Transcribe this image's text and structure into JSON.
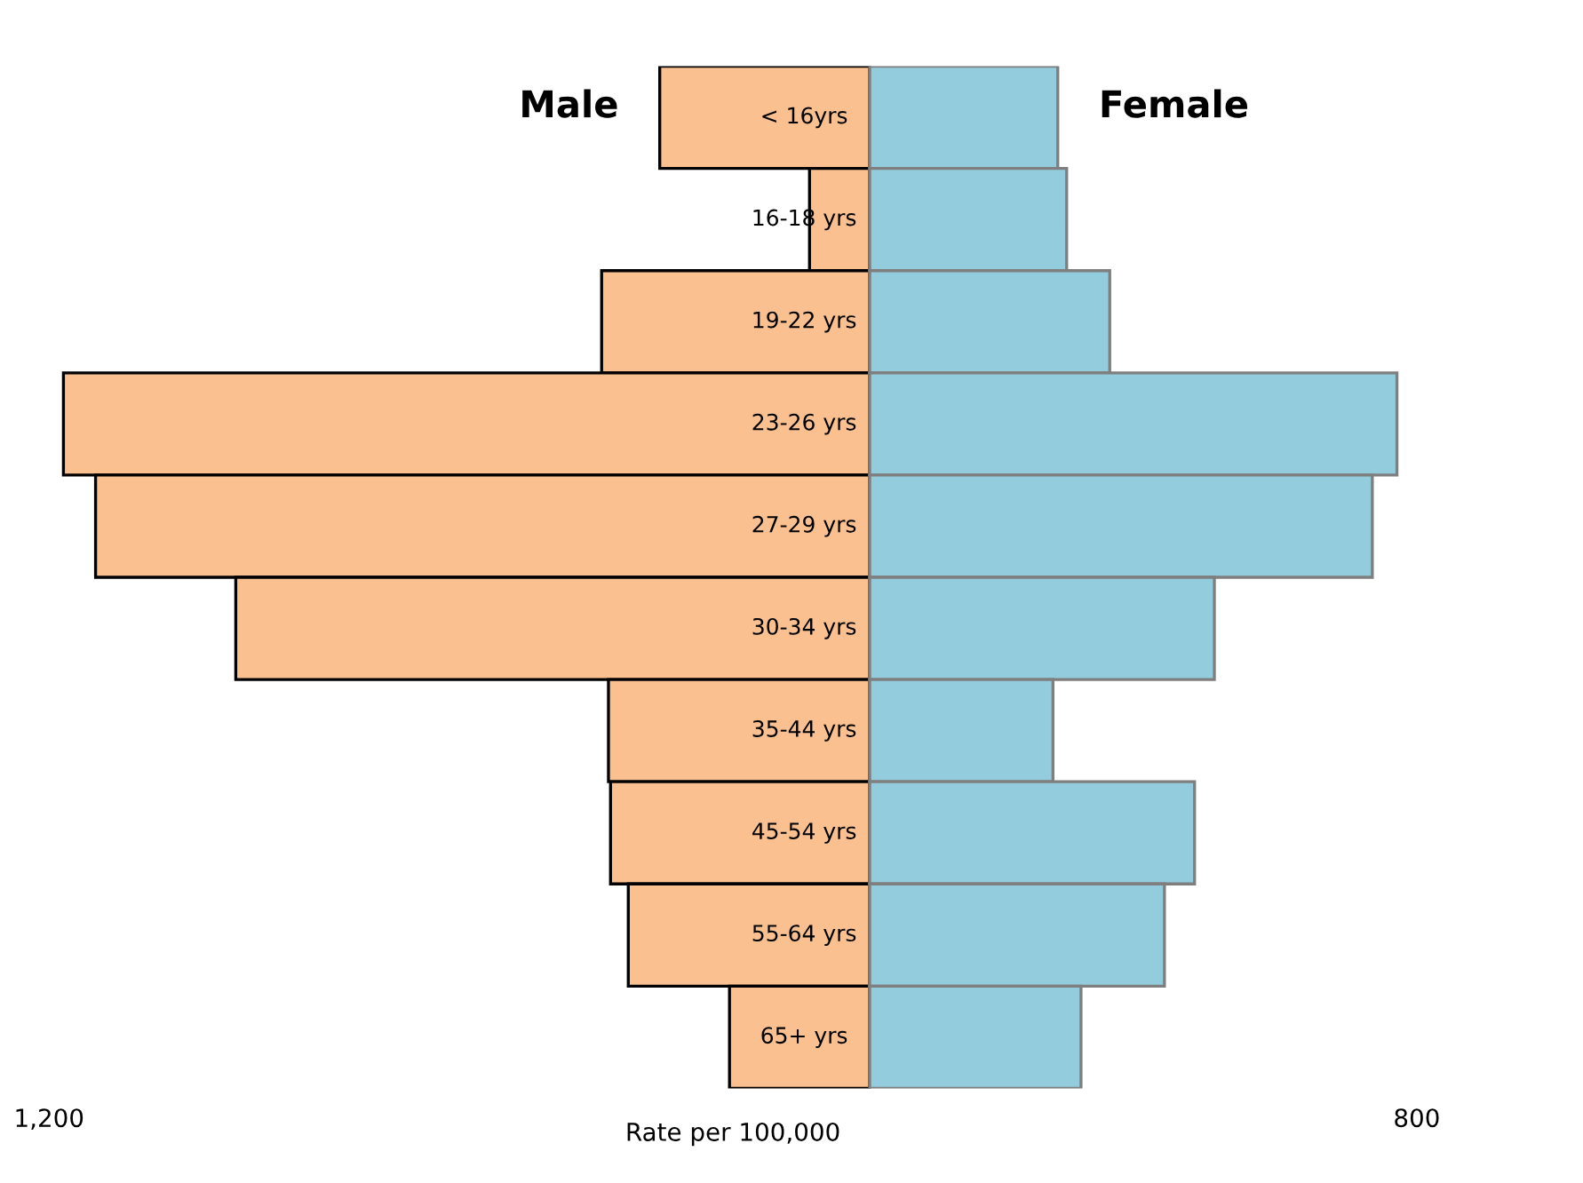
{
  "chart_data": {
    "type": "bar",
    "orientation": "horizontal",
    "xlabel": "Rate per 100,000",
    "categories": [
      "< 16yrs",
      "16-18 yrs",
      "19-22 yrs",
      "23-26 yrs",
      "27-29 yrs",
      "30-34 yrs",
      "35-44 yrs",
      "45-54 yrs",
      "55-64 yrs",
      "65+ yrs"
    ],
    "series": [
      {
        "name": "Male",
        "color": "#fac090",
        "values": [
          -307,
          -88,
          -392,
          -1179,
          -1132,
          -927,
          -382,
          -379,
          -353,
          -205
        ]
      },
      {
        "name": "Female",
        "color": "#93cddd",
        "values": [
          275,
          288,
          351,
          771,
          735,
          504,
          268,
          475,
          431,
          309
        ]
      }
    ],
    "stacked": true,
    "xlim": [
      -1200,
      800
    ],
    "xticks": [
      {
        "value": -1200,
        "label": "1,200"
      },
      800
    ],
    "grid": false,
    "legend": false
  }
}
